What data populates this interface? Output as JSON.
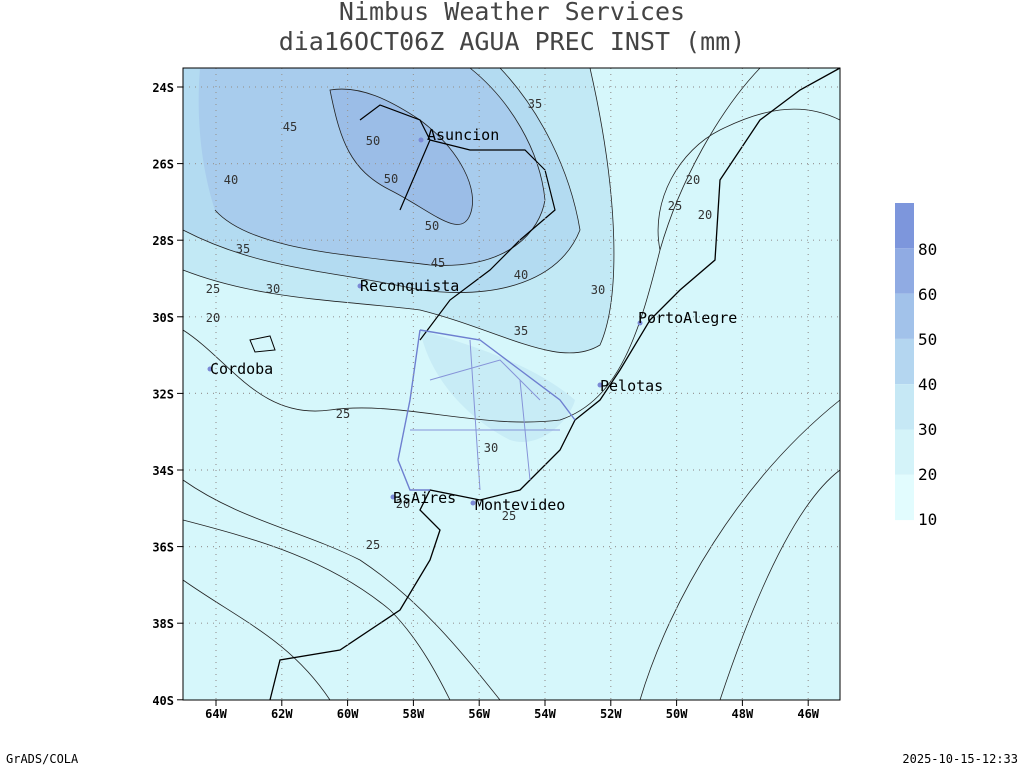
{
  "header": {
    "title": "Nimbus Weather Services",
    "subtitle": "dia16OCT06Z AGUA PREC INST (mm)"
  },
  "map": {
    "lat_ticks": [
      "24S",
      "26S",
      "28S",
      "30S",
      "32S",
      "34S",
      "36S",
      "38S",
      "40S"
    ],
    "lon_ticks": [
      "64W",
      "62W",
      "60W",
      "58W",
      "56W",
      "54W",
      "52W",
      "50W",
      "48W",
      "46W"
    ],
    "cities": [
      "Asuncion",
      "Reconquista",
      "PortoAlegre",
      "Cordoba",
      "Pelotas",
      "BsAires",
      "Montevideo"
    ],
    "contour_labels": [
      35,
      45,
      50,
      50,
      40,
      50,
      35,
      45,
      40,
      25,
      30,
      30,
      20,
      35,
      20,
      25,
      20,
      25,
      30,
      20,
      25,
      25
    ]
  },
  "colorbar": {
    "labels": [
      80,
      60,
      50,
      40,
      30,
      20,
      10
    ]
  },
  "footer": {
    "left": "GrADS/COLA",
    "right": "2025-10-15-12:33"
  }
}
